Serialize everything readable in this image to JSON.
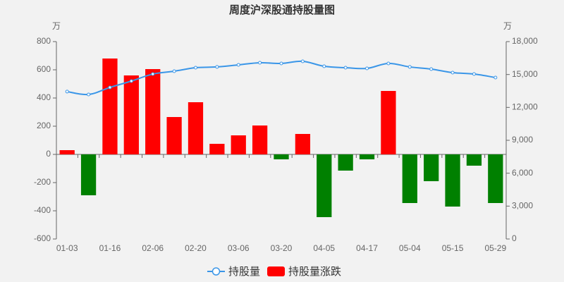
{
  "chart_data": {
    "type": "combo",
    "title": "周度沪深股通持股量图",
    "y_unit": "万",
    "y2_unit": "万",
    "categories": [
      "01-03",
      null,
      "01-16",
      null,
      "02-06",
      null,
      "02-20",
      null,
      "03-06",
      null,
      "03-20",
      null,
      "04-05",
      null,
      "04-17",
      null,
      "05-04",
      null,
      "05-15",
      null,
      "05-29"
    ],
    "series": [
      {
        "name": "持股量",
        "type": "line",
        "axis": "y2",
        "color": "#3a96e8",
        "values": [
          13440,
          13180,
          13820,
          14400,
          15040,
          15300,
          15620,
          15690,
          15880,
          16070,
          16010,
          16200,
          15750,
          15620,
          15560,
          16010,
          15690,
          15490,
          15170,
          15040,
          14720
        ]
      },
      {
        "name": "持股量涨跌",
        "type": "bar",
        "color": "#ff0000",
        "negative_color": "#008000",
        "values": [
          30,
          -290,
          680,
          560,
          605,
          265,
          370,
          75,
          135,
          205,
          -35,
          145,
          -445,
          -115,
          -35,
          450,
          -345,
          -190,
          -370,
          -80,
          -345
        ]
      }
    ],
    "ylim": [
      -600,
      800
    ],
    "yticks": [
      -600,
      -400,
      -200,
      0,
      200,
      400,
      600,
      800
    ],
    "y2lim": [
      0,
      18000
    ],
    "y2ticks": [
      0,
      {
        "value": 3000,
        "label": "3,000"
      },
      {
        "value": 6000,
        "label": "6,000"
      },
      {
        "value": 9000,
        "label": "9,000"
      },
      {
        "value": 12000,
        "label": "12,000"
      },
      {
        "value": 15000,
        "label": "15,000"
      },
      {
        "value": 18000,
        "label": "18,000"
      }
    ],
    "grid": false
  }
}
